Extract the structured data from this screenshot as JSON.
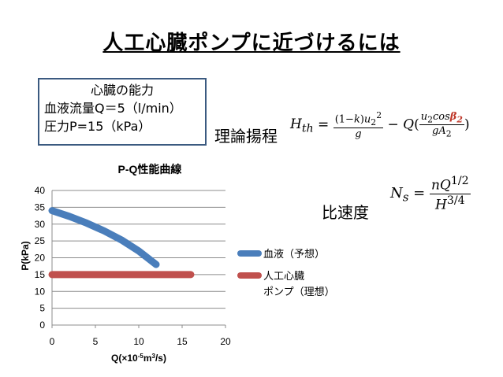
{
  "slide": {
    "title": "人工心臓ポンプに近づけるには"
  },
  "heart_box": {
    "heading": "心臓の能力",
    "flow": "血液流量Q＝5（l/min）",
    "pressure": "圧力P=15（kPa）"
  },
  "formulas": {
    "theory_label": "理論揚程",
    "specific_speed_label": "比速度"
  },
  "chart_data": {
    "type": "line",
    "title": "P-Q性能曲線",
    "xlabel": "Q(×10-5m3/s)",
    "ylabel": "P(kPa)",
    "xlim": [
      0,
      20
    ],
    "ylim": [
      0,
      40
    ],
    "xticks": [
      0,
      5,
      10,
      15,
      20
    ],
    "yticks": [
      0,
      5,
      10,
      15,
      20,
      25,
      30,
      35,
      40
    ],
    "grid": "horizontal",
    "legend_position": "right",
    "series": [
      {
        "name": "血液（予想）",
        "color": "#4a7ebb",
        "x": [
          0,
          2,
          4,
          6,
          8,
          10,
          12
        ],
        "y": [
          34,
          32.3,
          30.3,
          28,
          25.3,
          22,
          18
        ]
      },
      {
        "name": "人工心臓ポンプ（理想）",
        "color": "#c0504d",
        "x": [
          0,
          16
        ],
        "y": [
          15,
          15
        ]
      }
    ]
  }
}
